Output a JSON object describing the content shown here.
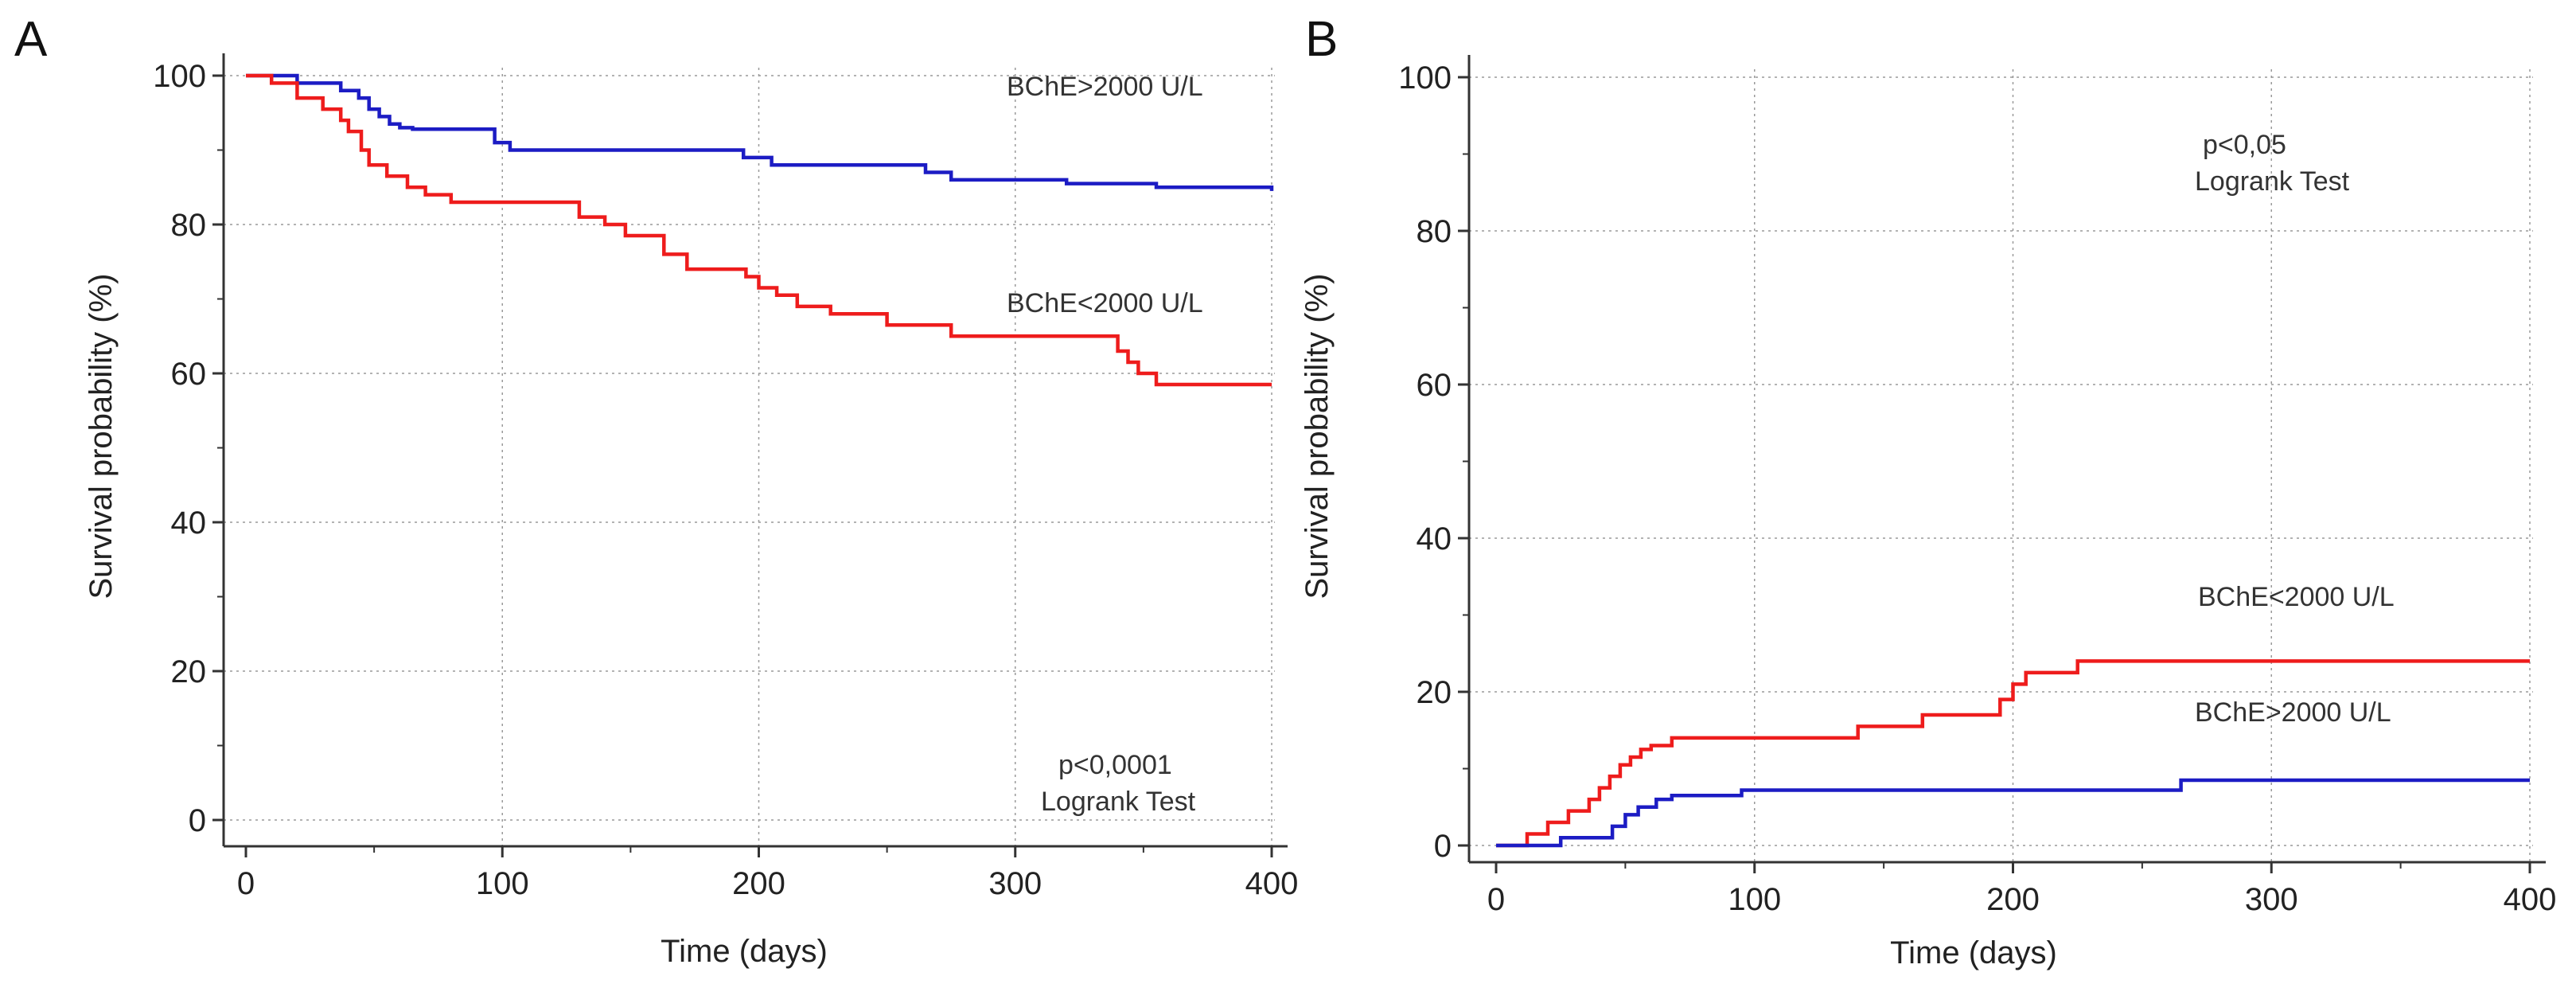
{
  "chart_data": [
    {
      "panel": "A",
      "type": "line",
      "title": "",
      "xlabel": "Time (days)",
      "ylabel": "Survival probability (%)",
      "xlim": [
        0,
        400
      ],
      "ylim": [
        0,
        100
      ],
      "xticks": [
        "0",
        "100",
        "200",
        "300",
        "400"
      ],
      "yticks": [
        "0",
        "20",
        "40",
        "60",
        "80",
        "100"
      ],
      "grid": true,
      "series": [
        {
          "name": "BChE>2000 U/L",
          "color": "#1c1cc4",
          "x": [
            0,
            20,
            37,
            44,
            48,
            52,
            56,
            60,
            65,
            97,
            103,
            194,
            205,
            265,
            275,
            320,
            355,
            400
          ],
          "y": [
            100,
            99,
            98,
            97,
            95.5,
            94.5,
            93.5,
            93,
            92.8,
            91,
            90,
            89,
            88,
            87,
            86,
            85.5,
            85,
            84.5
          ]
        },
        {
          "name": "BChE<2000 U/L",
          "color": "#ee1c1c",
          "x": [
            0,
            10,
            20,
            30,
            37,
            40,
            45,
            48,
            55,
            63,
            70,
            80,
            130,
            140,
            148,
            163,
            172,
            195,
            200,
            207,
            215,
            228,
            250,
            275,
            340,
            344,
            348,
            355,
            400
          ],
          "y": [
            100,
            99,
            97,
            95.5,
            94,
            92.5,
            90,
            88,
            86.5,
            85,
            84,
            83,
            81,
            80,
            78.5,
            76,
            74,
            73,
            71.5,
            70.5,
            69,
            68,
            66.5,
            65,
            63,
            61.5,
            60,
            58.5,
            58.5
          ]
        }
      ],
      "annotations": [
        "BChE>2000 U/L",
        "BChE<2000 U/L",
        "p<0,0001",
        "Logrank Test"
      ]
    },
    {
      "panel": "B",
      "type": "line",
      "title": "",
      "xlabel": "Time (days)",
      "ylabel": "Survival probability (%)",
      "xlim": [
        0,
        400
      ],
      "ylim": [
        0,
        100
      ],
      "xticks": [
        "0",
        "100",
        "200",
        "300",
        "400"
      ],
      "yticks": [
        "0",
        "20",
        "40",
        "60",
        "80",
        "100"
      ],
      "grid": true,
      "series": [
        {
          "name": "BChE<2000 U/L",
          "color": "#ee1c1c",
          "x": [
            0,
            12,
            20,
            28,
            36,
            40,
            44,
            48,
            52,
            56,
            60,
            68,
            140,
            165,
            195,
            200,
            205,
            225,
            400
          ],
          "y": [
            0,
            1.5,
            3,
            4.5,
            6,
            7.5,
            9,
            10.5,
            11.5,
            12.5,
            13,
            14,
            15.5,
            17,
            19,
            21,
            22.5,
            24,
            24
          ]
        },
        {
          "name": "BChE>2000 U/L",
          "color": "#1c1cc4",
          "x": [
            0,
            25,
            45,
            50,
            55,
            62,
            68,
            95,
            265,
            400
          ],
          "y": [
            0,
            1,
            2.5,
            4,
            5,
            6,
            6.5,
            7.2,
            8.5,
            8.5
          ]
        }
      ],
      "annotations": [
        "BChE<2000 U/L",
        "BChE>2000 U/L",
        "p<0,05",
        "Logrank Test"
      ]
    }
  ],
  "panels": [
    {
      "letter": "A",
      "ylabel": "Survival probability (%)",
      "xlabel": "Time (days)",
      "label_high": "BChE>2000 U/L",
      "label_low": "BChE<2000 U/L",
      "pvalue": "p<0,0001",
      "test": "Logrank Test"
    },
    {
      "letter": "B",
      "ylabel": "Survival probability (%)",
      "xlabel": "Time (days)",
      "label_low": "BChE<2000 U/L",
      "label_high": "BChE>2000 U/L",
      "pvalue": "p<0,05",
      "test": "Logrank Test"
    }
  ]
}
